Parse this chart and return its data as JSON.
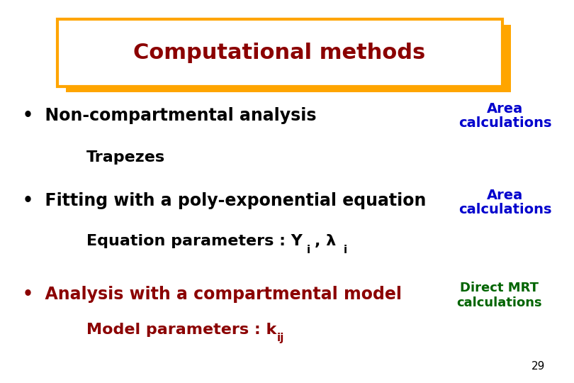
{
  "bg_color": "#ffffff",
  "title_text": "Computational methods",
  "title_color": "#8B0000",
  "title_box_edge_color": "#FFA500",
  "title_box_facecolor": "#ffffff",
  "side1_line1": "Area",
  "side1_line2": "calculations",
  "side1_color": "#0000CD",
  "side2_line1": "Area",
  "side2_line2": "calculations",
  "side2_color": "#0000CD",
  "side3_line1": "Direct MRT",
  "side3_line2": "calculations",
  "side3_color": "#006400",
  "page_number": "29",
  "page_color": "#000000",
  "bullet1_color": "#000000",
  "sub1_color": "#000000",
  "bullet2_color": "#000000",
  "sub2_color": "#000000",
  "bullet3_color": "#8B0000",
  "sub3_color": "#8B0000"
}
